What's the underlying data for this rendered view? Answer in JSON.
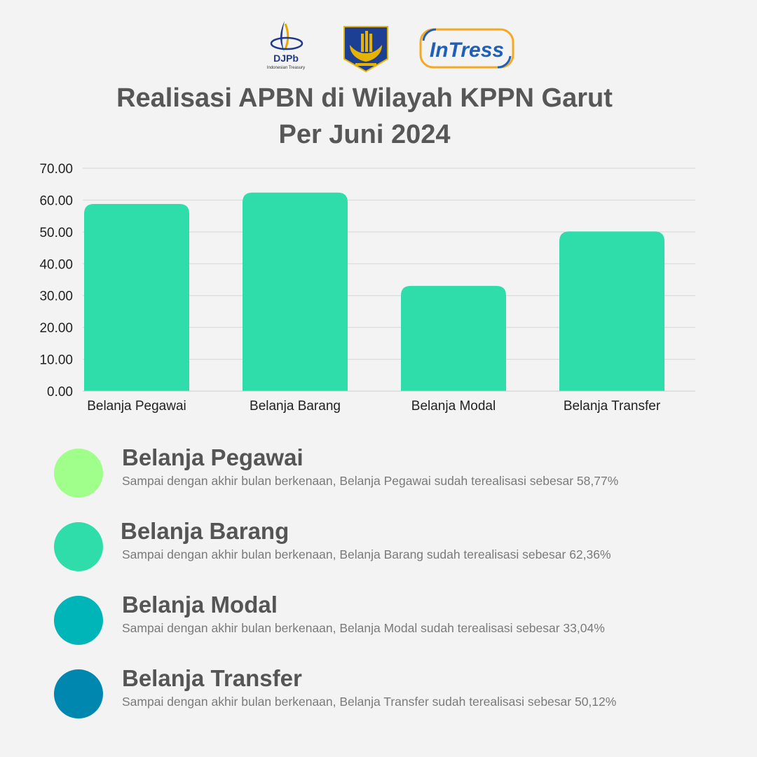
{
  "logos": {
    "djpb_text": "DJPb",
    "djpb_subtext": "Indonesian Treasury",
    "intress_text": "InTress"
  },
  "title": {
    "line1": "Realisasi APBN di Wilayah KPPN Garut",
    "line2": "Per Juni 2024"
  },
  "chart_data": {
    "type": "bar",
    "categories": [
      "Belanja Pegawai",
      "Belanja Barang",
      "Belanja Modal",
      "Belanja Transfer"
    ],
    "values": [
      58.77,
      62.36,
      33.04,
      50.12
    ],
    "yticks": [
      "0.00",
      "10.00",
      "20.00",
      "30.00",
      "40.00",
      "50.00",
      "60.00",
      "70.00"
    ],
    "ylim": [
      0,
      70
    ],
    "bar_color": "#2fddab",
    "grid": true,
    "legend": "none"
  },
  "legend_items": [
    {
      "name": "Belanja Pegawai",
      "desc": "Sampai dengan akhir bulan berkenaan, Belanja Pegawai sudah terealisasi sebesar 58,77%",
      "color": "#a0ff8a"
    },
    {
      "name": "Belanja Barang",
      "desc": "Sampai dengan akhir bulan berkenaan, Belanja Barang sudah terealisasi sebesar 62,36%",
      "color": "#2fddab"
    },
    {
      "name": "Belanja Modal",
      "desc": "Sampai dengan akhir bulan berkenaan, Belanja Modal sudah terealisasi sebesar 33,04%",
      "color": "#00b5b8"
    },
    {
      "name": "Belanja Transfer",
      "desc": "Sampai dengan akhir bulan berkenaan, Belanja Transfer sudah terealisasi sebesar 50,12%",
      "color": "#0087b0"
    }
  ]
}
